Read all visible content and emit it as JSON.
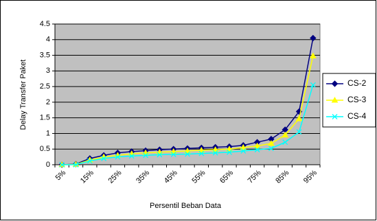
{
  "chart_data": {
    "type": "line",
    "x_label": "Persentil Beban Data",
    "y_label": "Delay Transfer Paket",
    "categories": [
      "5%",
      null,
      "15%",
      null,
      "25%",
      null,
      "35%",
      null,
      "45%",
      null,
      "55%",
      null,
      "65%",
      null,
      "75%",
      null,
      "85%",
      null,
      "95%"
    ],
    "series": [
      {
        "name": "CS-2",
        "color": "#000080",
        "marker": "diamond",
        "values": [
          0,
          0.02,
          0.2,
          0.3,
          0.38,
          0.42,
          0.45,
          0.48,
          0.5,
          0.52,
          0.54,
          0.56,
          0.58,
          0.62,
          0.72,
          0.82,
          1.12,
          1.7,
          4.05
        ]
      },
      {
        "name": "CS-3",
        "color": "#ffff00",
        "marker": "triangle",
        "values": [
          0,
          0.01,
          0.15,
          0.25,
          0.3,
          0.35,
          0.38,
          0.4,
          0.42,
          0.44,
          0.46,
          0.48,
          0.5,
          0.55,
          0.6,
          0.68,
          0.95,
          1.47,
          3.48
        ]
      },
      {
        "name": "CS-4",
        "color": "#00ffff",
        "marker": "x",
        "values": [
          0,
          0,
          0.12,
          0.2,
          0.25,
          0.28,
          0.3,
          0.32,
          0.33,
          0.34,
          0.36,
          0.38,
          0.4,
          0.44,
          0.48,
          0.52,
          0.72,
          1.05,
          2.55
        ]
      }
    ],
    "ylim": [
      0,
      4.5
    ],
    "yticks": [
      0,
      0.5,
      1,
      1.5,
      2,
      2.5,
      3,
      3.5,
      4,
      4.5
    ],
    "grid": true,
    "legend": "right",
    "plot_background": "#c0c0c0"
  }
}
